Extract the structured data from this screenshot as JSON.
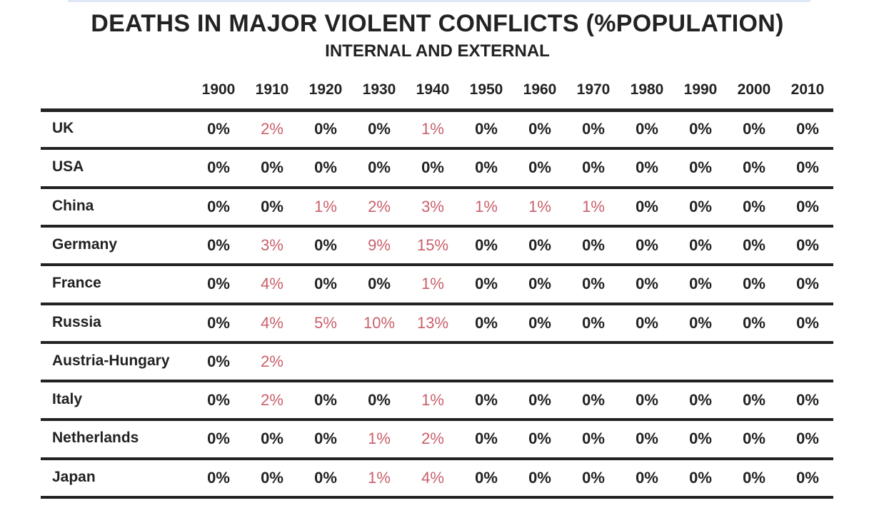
{
  "chart_data": {
    "type": "table",
    "title": "DEATHS IN MAJOR VIOLENT CONFLICTS (%POPULATION)",
    "subtitle": "INTERNAL AND EXTERNAL",
    "columns": [
      "1900",
      "1910",
      "1920",
      "1930",
      "1940",
      "1950",
      "1960",
      "1970",
      "1980",
      "1990",
      "2000",
      "2010"
    ],
    "rows": [
      {
        "label": "UK",
        "values": [
          "0%",
          "2%",
          "0%",
          "0%",
          "1%",
          "0%",
          "0%",
          "0%",
          "0%",
          "0%",
          "0%",
          "0%"
        ]
      },
      {
        "label": "USA",
        "values": [
          "0%",
          "0%",
          "0%",
          "0%",
          "0%",
          "0%",
          "0%",
          "0%",
          "0%",
          "0%",
          "0%",
          "0%"
        ]
      },
      {
        "label": "China",
        "values": [
          "0%",
          "0%",
          "1%",
          "2%",
          "3%",
          "1%",
          "1%",
          "1%",
          "0%",
          "0%",
          "0%",
          "0%"
        ]
      },
      {
        "label": "Germany",
        "values": [
          "0%",
          "3%",
          "0%",
          "9%",
          "15%",
          "0%",
          "0%",
          "0%",
          "0%",
          "0%",
          "0%",
          "0%"
        ]
      },
      {
        "label": "France",
        "values": [
          "0%",
          "4%",
          "0%",
          "0%",
          "1%",
          "0%",
          "0%",
          "0%",
          "0%",
          "0%",
          "0%",
          "0%"
        ]
      },
      {
        "label": "Russia",
        "values": [
          "0%",
          "4%",
          "5%",
          "10%",
          "13%",
          "0%",
          "0%",
          "0%",
          "0%",
          "0%",
          "0%",
          "0%"
        ]
      },
      {
        "label": "Austria-Hungary",
        "values": [
          "0%",
          "2%",
          "",
          "",
          "",
          "",
          "",
          "",
          "",
          "",
          "",
          ""
        ]
      },
      {
        "label": "Italy",
        "values": [
          "0%",
          "2%",
          "0%",
          "0%",
          "1%",
          "0%",
          "0%",
          "0%",
          "0%",
          "0%",
          "0%",
          "0%"
        ]
      },
      {
        "label": "Netherlands",
        "values": [
          "0%",
          "0%",
          "0%",
          "1%",
          "2%",
          "0%",
          "0%",
          "0%",
          "0%",
          "0%",
          "0%",
          "0%"
        ]
      },
      {
        "label": "Japan",
        "values": [
          "0%",
          "0%",
          "0%",
          "1%",
          "4%",
          "0%",
          "0%",
          "0%",
          "0%",
          "0%",
          "0%",
          "0%"
        ]
      }
    ],
    "colors": {
      "zero": "#222222",
      "nonzero": "#c95f6a",
      "rule": "#222222"
    }
  }
}
